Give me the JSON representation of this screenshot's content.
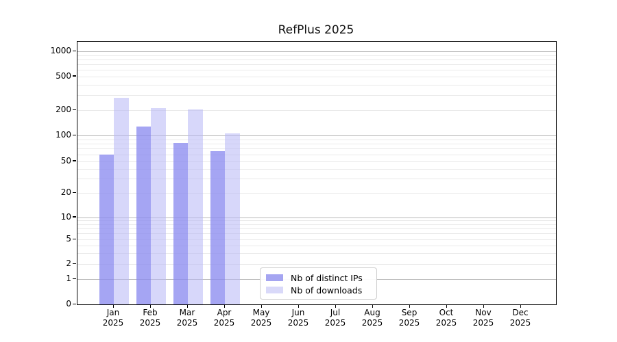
{
  "title": "RefPlus 2025",
  "chart_data": {
    "type": "bar",
    "title": "RefPlus 2025",
    "x_categories": [
      "Jan",
      "Feb",
      "Mar",
      "Apr",
      "May",
      "Jun",
      "Jul",
      "Aug",
      "Sep",
      "Oct",
      "Nov",
      "Dec"
    ],
    "x_year_label": "2025",
    "y_scale": "symlog",
    "y_ticks": [
      0,
      1,
      2,
      5,
      10,
      20,
      50,
      100,
      200,
      500,
      1000
    ],
    "y_major_gridlines": [
      1,
      10,
      100,
      1000
    ],
    "y_minor_gridlines": [
      2,
      3,
      4,
      5,
      6,
      7,
      8,
      9,
      20,
      30,
      40,
      50,
      60,
      70,
      80,
      90,
      200,
      300,
      400,
      500,
      600,
      700,
      800,
      900
    ],
    "ylim": [
      0,
      1350
    ],
    "grid": true,
    "legend_position": "lower-center",
    "series": [
      {
        "name": "Nb of distinct IPs",
        "swatch": "#a5a5f1",
        "fill": "rgba(140,140,240,0.78)",
        "values": [
          60,
          127,
          82,
          65
        ]
      },
      {
        "name": "Nb of downloads",
        "swatch": "#d9d9f9",
        "fill": "rgba(183,183,246,0.55)",
        "values": [
          280,
          212,
          205,
          106
        ]
      }
    ]
  },
  "colors": {
    "axis": "#000000",
    "major_grid": "#b8b8b8",
    "minor_grid": "#e9e9e9",
    "legend_border": "#cccccc",
    "background": "#ffffff"
  }
}
